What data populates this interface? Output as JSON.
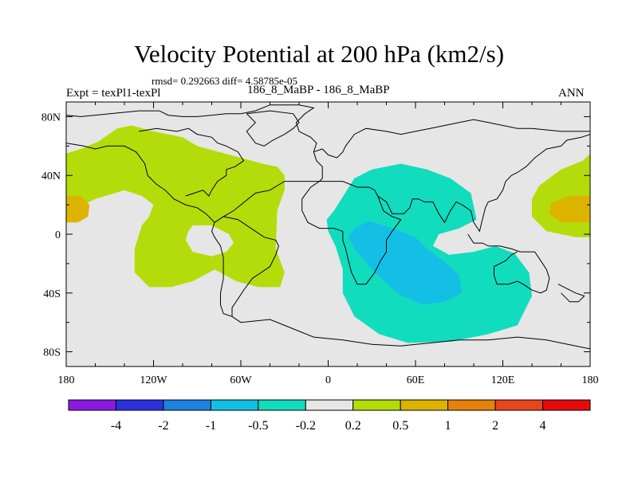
{
  "title": "Velocity Potential at 200 hPa (km2/s)",
  "stats_line": "rmsd= 0.292663 diff= 4.58785e-05",
  "left_label": "Expt = texPl1-texPl",
  "center_label": "186_8_MaBP - 186_8_MaBP",
  "right_label": "ANN",
  "chart_data": {
    "type": "heatmap",
    "title": "Velocity Potential at 200 hPa (km2/s)",
    "units": "km2/s",
    "projection": "cylindrical-equidistant",
    "xlim": [
      -180,
      180
    ],
    "ylim": [
      -90,
      90
    ],
    "x_ticks": [
      {
        "value": -180,
        "label": "180"
      },
      {
        "value": -120,
        "label": "120W"
      },
      {
        "value": -60,
        "label": "60W"
      },
      {
        "value": 0,
        "label": "0"
      },
      {
        "value": 60,
        "label": "60E"
      },
      {
        "value": 120,
        "label": "120E"
      },
      {
        "value": 180,
        "label": "180"
      }
    ],
    "y_ticks": [
      {
        "value": 80,
        "label": "80N"
      },
      {
        "value": 40,
        "label": "40N"
      },
      {
        "value": 0,
        "label": "0"
      },
      {
        "value": -40,
        "label": "40S"
      },
      {
        "value": -80,
        "label": "80S"
      }
    ],
    "colorbar": {
      "levels": [
        "-4",
        "-2",
        "-1",
        "-0.5",
        "-0.2",
        "0.2",
        "0.5",
        "1",
        "2",
        "4"
      ],
      "colors": [
        "#8a1ae0",
        "#2b32dc",
        "#1e82e0",
        "#14bfe6",
        "#12dcbe",
        "#e6e6e6",
        "#b4dc0a",
        "#dcb400",
        "#e6820a",
        "#e6461e",
        "#e60a0a"
      ]
    },
    "background_color": "#e6e6e6",
    "regions": [
      {
        "name": "positive-west",
        "level": "0.2 to 0.5",
        "color": "#b4dc0a",
        "polygon": [
          [
            -180,
            55
          ],
          [
            -170,
            58
          ],
          [
            -158,
            63
          ],
          [
            -145,
            72
          ],
          [
            -135,
            74
          ],
          [
            -120,
            70
          ],
          [
            -100,
            66
          ],
          [
            -90,
            60
          ],
          [
            -75,
            56
          ],
          [
            -60,
            52
          ],
          [
            -45,
            48
          ],
          [
            -35,
            46
          ],
          [
            -30,
            40
          ],
          [
            -30,
            30
          ],
          [
            -35,
            16
          ],
          [
            -36,
            -10
          ],
          [
            -30,
            -26
          ],
          [
            -33,
            -36
          ],
          [
            -48,
            -36
          ],
          [
            -63,
            -32
          ],
          [
            -78,
            -24
          ],
          [
            -93,
            -32
          ],
          [
            -108,
            -36
          ],
          [
            -123,
            -36
          ],
          [
            -133,
            -26
          ],
          [
            -133,
            -10
          ],
          [
            -128,
            6
          ],
          [
            -123,
            12
          ],
          [
            -120,
            20
          ],
          [
            -128,
            26
          ],
          [
            -140,
            30
          ],
          [
            -160,
            24
          ],
          [
            -172,
            18
          ],
          [
            -180,
            14
          ]
        ]
      },
      {
        "name": "positive-west-hole",
        "level": "-0.2 to 0.2",
        "color": "#e6e6e6",
        "polygon": [
          [
            -93,
            6
          ],
          [
            -80,
            6
          ],
          [
            -68,
            0
          ],
          [
            -65,
            -6
          ],
          [
            -70,
            -12
          ],
          [
            -80,
            -15
          ],
          [
            -93,
            -12
          ],
          [
            -98,
            -4
          ],
          [
            -96,
            2
          ]
        ]
      },
      {
        "name": "positive-east",
        "level": "0.2 to 0.5",
        "color": "#b4dc0a",
        "polygon": [
          [
            180,
            55
          ],
          [
            180,
            -2
          ],
          [
            170,
            -2
          ],
          [
            150,
            2
          ],
          [
            140,
            12
          ],
          [
            140,
            24
          ],
          [
            145,
            33
          ],
          [
            160,
            44
          ],
          [
            175,
            50
          ]
        ]
      },
      {
        "name": "strong-positive-west",
        "level": "0.5 to 1",
        "color": "#dcb400",
        "polygon": [
          [
            -180,
            26
          ],
          [
            -170,
            26
          ],
          [
            -164,
            20
          ],
          [
            -165,
            12
          ],
          [
            -172,
            8
          ],
          [
            -180,
            8
          ]
        ]
      },
      {
        "name": "strong-positive-east",
        "level": "0.5 to 1",
        "color": "#dcb400",
        "polygon": [
          [
            180,
            26
          ],
          [
            165,
            26
          ],
          [
            153,
            21
          ],
          [
            152,
            14
          ],
          [
            160,
            8
          ],
          [
            175,
            8
          ],
          [
            180,
            8
          ]
        ]
      },
      {
        "name": "negative-outer",
        "level": "-0.5 to -0.2",
        "color": "#12dcbe",
        "polygon": [
          [
            18,
            38
          ],
          [
            30,
            44
          ],
          [
            50,
            48
          ],
          [
            68,
            44
          ],
          [
            84,
            38
          ],
          [
            98,
            28
          ],
          [
            102,
            10
          ],
          [
            90,
            4
          ],
          [
            76,
            0
          ],
          [
            72,
            -8
          ],
          [
            83,
            -14
          ],
          [
            100,
            -12
          ],
          [
            115,
            -8
          ],
          [
            128,
            -13
          ],
          [
            138,
            -26
          ],
          [
            140,
            -42
          ],
          [
            130,
            -62
          ],
          [
            110,
            -68
          ],
          [
            85,
            -73
          ],
          [
            55,
            -74
          ],
          [
            35,
            -68
          ],
          [
            18,
            -56
          ],
          [
            10,
            -40
          ],
          [
            10,
            -24
          ],
          [
            5,
            -8
          ],
          [
            0,
            2
          ],
          [
            -1,
            10
          ],
          [
            4,
            16
          ]
        ]
      },
      {
        "name": "negative-inner",
        "level": "-1 to -0.5",
        "color": "#14bfe6",
        "polygon": [
          [
            18,
            4
          ],
          [
            28,
            9
          ],
          [
            38,
            6
          ],
          [
            50,
            2
          ],
          [
            60,
            -2
          ],
          [
            68,
            -10
          ],
          [
            79,
            -18
          ],
          [
            90,
            -28
          ],
          [
            92,
            -40
          ],
          [
            80,
            -46
          ],
          [
            64,
            -48
          ],
          [
            47,
            -40
          ],
          [
            30,
            -24
          ],
          [
            18,
            -10
          ],
          [
            14,
            -2
          ]
        ]
      },
      {
        "name": "negative-inner-notch",
        "level": "-0.5 to -0.2",
        "color": "#12dcbe",
        "polygon": [
          [
            60,
            10
          ],
          [
            66,
            14
          ],
          [
            74,
            14
          ],
          [
            76,
            8
          ],
          [
            70,
            4
          ],
          [
            63,
            4
          ]
        ]
      }
    ]
  },
  "coastlines": [
    [
      [
        -180,
        81
      ],
      [
        -170,
        80
      ],
      [
        -150,
        82
      ],
      [
        -130,
        84
      ],
      [
        -116,
        84
      ],
      [
        -110,
        81
      ],
      [
        -100,
        80
      ],
      [
        -90,
        80
      ],
      [
        -80,
        81
      ],
      [
        -70,
        82
      ],
      [
        -60,
        82
      ],
      [
        -50,
        84
      ],
      [
        -40,
        88
      ],
      [
        -20,
        88
      ],
      [
        -10,
        86
      ],
      [
        -16,
        82
      ],
      [
        -22,
        76
      ],
      [
        -20,
        70
      ],
      [
        -12,
        66
      ],
      [
        -8,
        62
      ],
      [
        -10,
        56
      ],
      [
        -8,
        50
      ],
      [
        -4,
        46
      ],
      [
        -4,
        38
      ],
      [
        -6,
        36
      ]
    ],
    [
      [
        -6,
        36
      ],
      [
        -30,
        36
      ],
      [
        -40,
        30
      ],
      [
        -50,
        28
      ],
      [
        -60,
        20
      ],
      [
        -65,
        16
      ],
      [
        -72,
        12
      ],
      [
        -78,
        8
      ],
      [
        -84,
        14
      ],
      [
        -90,
        18
      ],
      [
        -98,
        20
      ],
      [
        -106,
        24
      ],
      [
        -112,
        30
      ],
      [
        -118,
        34
      ],
      [
        -124,
        40
      ],
      [
        -126,
        48
      ],
      [
        -132,
        56
      ],
      [
        -140,
        60
      ],
      [
        -152,
        60
      ],
      [
        -160,
        58
      ],
      [
        -168,
        60
      ],
      [
        -180,
        62
      ]
    ],
    [
      [
        -78,
        8
      ],
      [
        -80,
        2
      ],
      [
        -78,
        -2
      ],
      [
        -74,
        -8
      ],
      [
        -72,
        -16
      ],
      [
        -72,
        -24
      ],
      [
        -72,
        -30
      ],
      [
        -74,
        -40
      ],
      [
        -74,
        -48
      ],
      [
        -72,
        -54
      ],
      [
        -66,
        -56
      ],
      [
        -66,
        -50
      ],
      [
        -62,
        -44
      ],
      [
        -58,
        -38
      ],
      [
        -52,
        -30
      ],
      [
        -46,
        -26
      ],
      [
        -40,
        -22
      ],
      [
        -36,
        -14
      ],
      [
        -34,
        -8
      ],
      [
        -36,
        -4
      ],
      [
        -44,
        -2
      ],
      [
        -50,
        2
      ],
      [
        -56,
        6
      ],
      [
        -62,
        10
      ],
      [
        -72,
        12
      ]
    ],
    [
      [
        -66,
        -56
      ],
      [
        -60,
        -60
      ],
      [
        -40,
        -58
      ],
      [
        -30,
        -62
      ],
      [
        -10,
        -70
      ],
      [
        10,
        -72
      ],
      [
        30,
        -75
      ],
      [
        50,
        -76
      ],
      [
        70,
        -74
      ],
      [
        90,
        -72
      ],
      [
        110,
        -72
      ],
      [
        130,
        -70
      ],
      [
        150,
        -72
      ],
      [
        170,
        -76
      ],
      [
        180,
        -78
      ]
    ],
    [
      [
        -6,
        36
      ],
      [
        -12,
        32
      ],
      [
        -18,
        24
      ],
      [
        -18,
        16
      ],
      [
        -14,
        8
      ],
      [
        -6,
        4
      ],
      [
        4,
        4
      ],
      [
        10,
        2
      ],
      [
        10,
        -4
      ],
      [
        12,
        -10
      ],
      [
        14,
        -18
      ],
      [
        16,
        -26
      ],
      [
        20,
        -34
      ],
      [
        26,
        -34
      ],
      [
        32,
        -26
      ],
      [
        36,
        -18
      ],
      [
        40,
        -12
      ],
      [
        40,
        -4
      ],
      [
        44,
        2
      ],
      [
        50,
        10
      ],
      [
        44,
        12
      ],
      [
        38,
        16
      ],
      [
        34,
        26
      ],
      [
        32,
        30
      ],
      [
        28,
        32
      ],
      [
        20,
        32
      ],
      [
        10,
        36
      ],
      [
        0,
        36
      ],
      [
        -6,
        36
      ]
    ],
    [
      [
        34,
        26
      ],
      [
        40,
        22
      ],
      [
        44,
        14
      ],
      [
        52,
        14
      ],
      [
        56,
        18
      ],
      [
        58,
        24
      ],
      [
        62,
        24
      ],
      [
        66,
        22
      ],
      [
        72,
        22
      ],
      [
        76,
        14
      ],
      [
        80,
        8
      ],
      [
        84,
        16
      ],
      [
        88,
        22
      ],
      [
        92,
        20
      ],
      [
        98,
        16
      ],
      [
        100,
        8
      ],
      [
        104,
        2
      ],
      [
        106,
        10
      ],
      [
        108,
        18
      ],
      [
        110,
        22
      ],
      [
        116,
        24
      ],
      [
        120,
        30
      ],
      [
        122,
        36
      ],
      [
        126,
        40
      ],
      [
        130,
        42
      ],
      [
        136,
        46
      ],
      [
        142,
        52
      ],
      [
        150,
        58
      ],
      [
        160,
        60
      ],
      [
        164,
        64
      ],
      [
        174,
        66
      ],
      [
        180,
        68
      ]
    ],
    [
      [
        -10,
        56
      ],
      [
        -4,
        58
      ],
      [
        0,
        54
      ],
      [
        6,
        52
      ],
      [
        10,
        56
      ],
      [
        12,
        60
      ],
      [
        18,
        68
      ],
      [
        26,
        72
      ],
      [
        40,
        70
      ],
      [
        50,
        68
      ],
      [
        60,
        70
      ],
      [
        70,
        72
      ],
      [
        80,
        74
      ],
      [
        90,
        76
      ],
      [
        100,
        78
      ],
      [
        110,
        76
      ],
      [
        120,
        74
      ],
      [
        130,
        72
      ],
      [
        140,
        72
      ],
      [
        160,
        70
      ],
      [
        170,
        70
      ],
      [
        180,
        70
      ]
    ],
    [
      [
        96,
        0
      ],
      [
        100,
        -6
      ],
      [
        106,
        -6
      ],
      [
        110,
        -8
      ],
      [
        118,
        -8
      ],
      [
        126,
        -10
      ],
      [
        132,
        -12
      ],
      [
        136,
        -12
      ],
      [
        142,
        -12
      ],
      [
        146,
        -18
      ],
      [
        150,
        -24
      ],
      [
        152,
        -30
      ],
      [
        150,
        -38
      ],
      [
        146,
        -40
      ],
      [
        140,
        -38
      ],
      [
        134,
        -34
      ],
      [
        130,
        -32
      ],
      [
        124,
        -34
      ],
      [
        116,
        -34
      ],
      [
        114,
        -28
      ],
      [
        114,
        -22
      ],
      [
        118,
        -20
      ],
      [
        122,
        -18
      ],
      [
        126,
        -14
      ],
      [
        130,
        -12
      ]
    ],
    [
      [
        -56,
        82
      ],
      [
        -50,
        76
      ],
      [
        -56,
        70
      ],
      [
        -50,
        62
      ],
      [
        -44,
        60
      ],
      [
        -38,
        64
      ],
      [
        -30,
        68
      ],
      [
        -24,
        72
      ],
      [
        -20,
        76
      ],
      [
        -24,
        82
      ],
      [
        -40,
        84
      ],
      [
        -56,
        82
      ]
    ],
    [
      [
        -130,
        70
      ],
      [
        -118,
        72
      ],
      [
        -104,
        70
      ],
      [
        -96,
        72
      ],
      [
        -90,
        68
      ],
      [
        -80,
        66
      ],
      [
        -76,
        62
      ],
      [
        -70,
        60
      ],
      [
        -62,
        56
      ],
      [
        -58,
        50
      ],
      [
        -64,
        46
      ],
      [
        -70,
        44
      ],
      [
        -70,
        40
      ],
      [
        -76,
        36
      ],
      [
        -80,
        30
      ],
      [
        -82,
        26
      ],
      [
        -86,
        30
      ],
      [
        -92,
        28
      ],
      [
        -98,
        26
      ]
    ],
    [
      [
        158,
        -34
      ],
      [
        170,
        -40
      ],
      [
        176,
        -42
      ],
      [
        172,
        -46
      ],
      [
        166,
        -46
      ],
      [
        160,
        -40
      ]
    ]
  ]
}
